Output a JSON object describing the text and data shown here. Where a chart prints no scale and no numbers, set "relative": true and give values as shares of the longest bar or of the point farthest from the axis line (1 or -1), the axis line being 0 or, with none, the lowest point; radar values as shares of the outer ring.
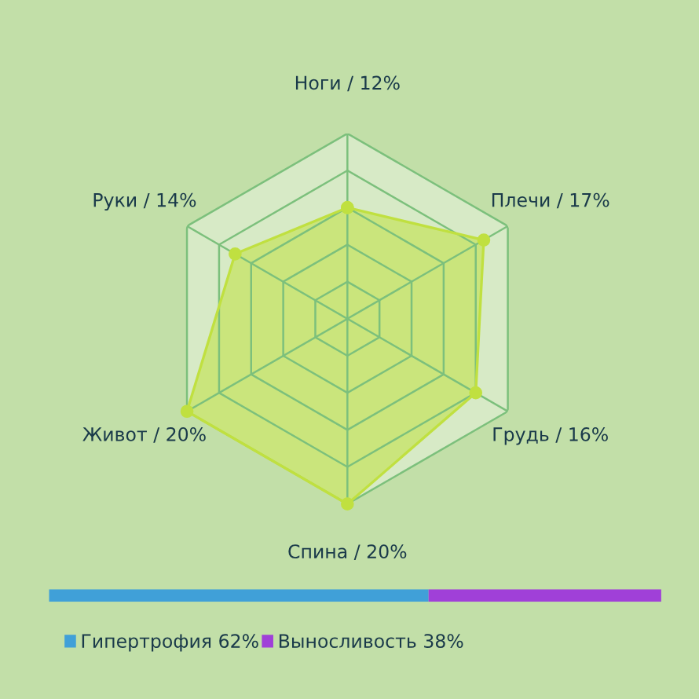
{
  "chart_data": [
    {
      "type": "radar",
      "relative": true,
      "grid": true,
      "marker": "circle",
      "categories": [
        "Ноги / 12%",
        "Плечи / 17%",
        "Грудь / 16%",
        "Спина / 20%",
        "Живот / 20%",
        "Руки / 14%"
      ],
      "series": [
        {
          "color": "#c0e040",
          "values": [
            0.6,
            0.85,
            0.8,
            1.0,
            1.0,
            0.7
          ]
        }
      ]
    },
    {
      "type": "bar",
      "orientation": "horizontal",
      "stacked": true,
      "relative": true,
      "legend": "bottom left",
      "categories": [
        null
      ],
      "series": [
        {
          "name": "Гипертрофия 62%",
          "color": "#40a0d8",
          "values": [
            0.62
          ]
        },
        {
          "name": "Выносливость 38%",
          "color": "#a040d8",
          "values": [
            0.38
          ]
        }
      ]
    }
  ]
}
